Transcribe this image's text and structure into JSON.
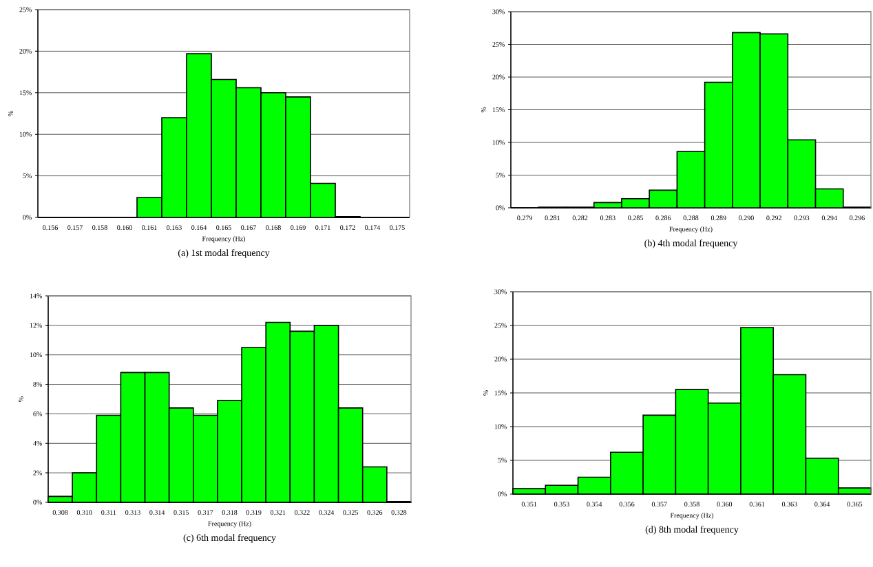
{
  "chart_data": [
    {
      "type": "bar",
      "title": "(a) 1st modal frequency",
      "xlabel": "Frequency (Hz)",
      "ylabel": "%",
      "color": "#00ff00",
      "grid": "y",
      "categories": [
        "0.156",
        "0.157",
        "0.158",
        "0.160",
        "0.161",
        "0.163",
        "0.164",
        "0.165",
        "0.167",
        "0.168",
        "0.169",
        "0.171",
        "0.172",
        "0.174",
        "0.175"
      ],
      "values": [
        0,
        0,
        0,
        0,
        2.4,
        12.0,
        19.7,
        16.6,
        15.6,
        15.0,
        14.5,
        4.1,
        0.1,
        0,
        0
      ],
      "ylim": [
        0,
        25
      ],
      "yticks": [
        {
          "value": 0,
          "label": "0%"
        },
        {
          "value": 5,
          "label": "5%"
        },
        {
          "value": 10,
          "label": "10%"
        },
        {
          "value": 15,
          "label": "15%"
        },
        {
          "value": 20,
          "label": "20%"
        },
        {
          "value": 25,
          "label": "25%"
        }
      ]
    },
    {
      "type": "bar",
      "title": "(b) 4th modal frequency",
      "xlabel": "Frequency (Hz)",
      "ylabel": "%",
      "color": "#00ff00",
      "grid": "y",
      "categories": [
        "0.279",
        "0.281",
        "0.282",
        "0.283",
        "0.285",
        "0.286",
        "0.288",
        "0.289",
        "0.290",
        "0.292",
        "0.293",
        "0.294",
        "0.296"
      ],
      "values": [
        0,
        0.1,
        0.1,
        0.8,
        1.4,
        2.7,
        8.6,
        19.2,
        26.8,
        26.6,
        10.4,
        2.9,
        0.1
      ],
      "ylim": [
        0,
        30
      ],
      "yticks": [
        {
          "value": 0,
          "label": "0%"
        },
        {
          "value": 5,
          "label": "5%"
        },
        {
          "value": 10,
          "label": "10%"
        },
        {
          "value": 15,
          "label": "15%"
        },
        {
          "value": 20,
          "label": "20%"
        },
        {
          "value": 25,
          "label": "25%"
        },
        {
          "value": 30,
          "label": "30%"
        }
      ]
    },
    {
      "type": "bar",
      "title": "(c) 6th modal frequency",
      "xlabel": "Frequency (Hz)",
      "ylabel": "%",
      "color": "#00ff00",
      "grid": "y",
      "categories": [
        "0.308",
        "0.310",
        "0.311",
        "0.313",
        "0.314",
        "0.315",
        "0.317",
        "0.318",
        "0.319",
        "0.321",
        "0.322",
        "0.324",
        "0.325",
        "0.326",
        "0.328"
      ],
      "values": [
        0.4,
        2.0,
        5.9,
        8.8,
        8.8,
        6.4,
        5.9,
        6.9,
        10.5,
        12.2,
        11.6,
        12.0,
        6.4,
        2.4,
        0.05
      ],
      "ylim": [
        0,
        14
      ],
      "yticks": [
        {
          "value": 0,
          "label": "0%"
        },
        {
          "value": 2,
          "label": "2%"
        },
        {
          "value": 4,
          "label": "4%"
        },
        {
          "value": 6,
          "label": "6%"
        },
        {
          "value": 8,
          "label": "8%"
        },
        {
          "value": 10,
          "label": "10%"
        },
        {
          "value": 12,
          "label": "12%"
        },
        {
          "value": 14,
          "label": "14%"
        }
      ]
    },
    {
      "type": "bar",
      "title": "(d) 8th modal frequency",
      "xlabel": "Frequency (Hz)",
      "ylabel": "%",
      "color": "#00ff00",
      "grid": "y",
      "categories": [
        "0.351",
        "0.353",
        "0.354",
        "0.356",
        "0.357",
        "0.358",
        "0.360",
        "0.361",
        "0.363",
        "0.364",
        "0.365"
      ],
      "values": [
        0.8,
        1.3,
        2.5,
        6.2,
        11.7,
        15.5,
        13.5,
        24.7,
        17.7,
        5.3,
        0.9
      ],
      "ylim": [
        0,
        30
      ],
      "yticks": [
        {
          "value": 0,
          "label": "0%"
        },
        {
          "value": 5,
          "label": "5%"
        },
        {
          "value": 10,
          "label": "10%"
        },
        {
          "value": 15,
          "label": "15%"
        },
        {
          "value": 20,
          "label": "20%"
        },
        {
          "value": 25,
          "label": "25%"
        },
        {
          "value": 30,
          "label": "30%"
        }
      ]
    }
  ]
}
